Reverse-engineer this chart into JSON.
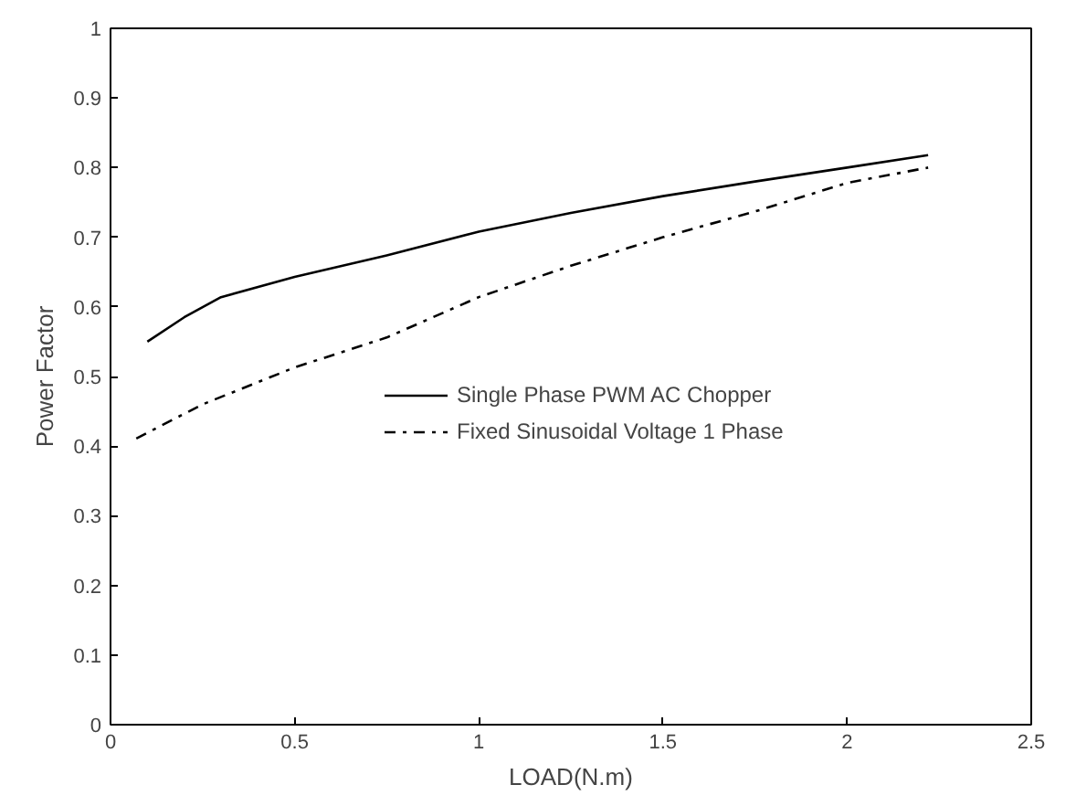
{
  "chart_data": {
    "type": "line",
    "xlabel": "LOAD(N.m)",
    "ylabel": "Power Factor",
    "xlim": [
      0,
      2.5
    ],
    "ylim": [
      0,
      1
    ],
    "xticks": [
      0,
      0.5,
      1,
      1.5,
      2,
      2.5
    ],
    "yticks": [
      0,
      0.1,
      0.2,
      0.3,
      0.4,
      0.5,
      0.6,
      0.7,
      0.8,
      0.9,
      1
    ],
    "grid": false,
    "legend": "center",
    "marker": "none",
    "series": [
      {
        "name": "Single Phase PWM AC Chopper",
        "color": "#000000",
        "line_style": "solid",
        "x": [
          0.1,
          0.2,
          0.3,
          0.5,
          0.75,
          1.0,
          1.25,
          1.5,
          1.75,
          2.0,
          2.22
        ],
        "values": [
          0.55,
          0.585,
          0.614,
          0.643,
          0.674,
          0.708,
          0.735,
          0.759,
          0.78,
          0.8,
          0.818
        ]
      },
      {
        "name": "Fixed Sinusoidal Voltage 1 Phase",
        "color": "#000000",
        "line_style": "dashed",
        "x": [
          0.07,
          0.25,
          0.5,
          0.75,
          1.0,
          1.25,
          1.5,
          1.75,
          2.0,
          2.22
        ],
        "values": [
          0.411,
          0.46,
          0.513,
          0.556,
          0.614,
          0.659,
          0.7,
          0.737,
          0.778,
          0.8
        ]
      }
    ]
  }
}
